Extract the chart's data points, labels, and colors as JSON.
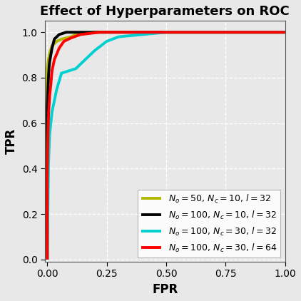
{
  "title": "Effect of Hyperparameters on ROC",
  "xlabel": "FPR",
  "ylabel": "TPR",
  "xlim": [
    -0.01,
    1.0
  ],
  "ylim": [
    -0.01,
    1.05
  ],
  "background_color": "#e8e8e8",
  "fig_background_color": "#e8e8e8",
  "grid_color": "#ffffff",
  "curves": [
    {
      "label": "$N_o = 50,\\, N_c = 10,\\, l = 32$",
      "color": "#b0b800",
      "linewidth": 2.8,
      "fpr": [
        0.0,
        0.0,
        0.0,
        0.005,
        0.01,
        0.02,
        0.04,
        0.06,
        0.08,
        0.1,
        0.12,
        0.15,
        0.18,
        0.2,
        1.0
      ],
      "tpr": [
        0.0,
        0.0,
        0.84,
        0.88,
        0.91,
        0.94,
        0.96,
        0.97,
        0.975,
        0.98,
        0.99,
        0.995,
        0.998,
        1.0,
        1.0
      ]
    },
    {
      "label": "$N_o = 100,\\, N_c = 10,\\, l = 32$",
      "color": "#000000",
      "linewidth": 2.8,
      "fpr": [
        0.0,
        0.0,
        0.0,
        0.003,
        0.005,
        0.008,
        0.01,
        0.015,
        0.02,
        0.03,
        0.05,
        0.08,
        1.0
      ],
      "tpr": [
        0.0,
        0.0,
        0.67,
        0.75,
        0.8,
        0.85,
        0.87,
        0.9,
        0.93,
        0.97,
        0.99,
        1.0,
        1.0
      ]
    },
    {
      "label": "$N_o = 100,\\, N_c = 30,\\, l = 32$",
      "color": "#00d0d0",
      "linewidth": 2.8,
      "fpr": [
        0.0,
        0.0,
        0.005,
        0.01,
        0.02,
        0.04,
        0.06,
        0.09,
        0.12,
        0.15,
        0.2,
        0.25,
        0.3,
        0.4,
        0.5,
        1.0
      ],
      "tpr": [
        0.0,
        0.0,
        0.42,
        0.55,
        0.65,
        0.75,
        0.82,
        0.83,
        0.84,
        0.87,
        0.92,
        0.96,
        0.98,
        0.99,
        1.0,
        1.0
      ]
    },
    {
      "label": "$N_o = 100,\\, N_c = 30,\\, l = 64$",
      "color": "#ff0000",
      "linewidth": 2.8,
      "fpr": [
        0.0,
        0.0,
        0.003,
        0.006,
        0.01,
        0.015,
        0.02,
        0.03,
        0.05,
        0.07,
        0.1,
        0.14,
        0.18,
        0.22,
        1.0
      ],
      "tpr": [
        0.0,
        0.37,
        0.55,
        0.65,
        0.72,
        0.77,
        0.83,
        0.88,
        0.93,
        0.96,
        0.975,
        0.99,
        0.995,
        1.0,
        1.0
      ]
    }
  ],
  "legend": {
    "loc": "lower right",
    "fontsize": 9.0,
    "framealpha": 0.85,
    "handlelength": 2.2,
    "labelspacing": 0.55
  },
  "title_fontsize": 13,
  "axis_label_fontsize": 12,
  "tick_fontsize": 10,
  "xticks": [
    0.0,
    0.25,
    0.5,
    0.75,
    1.0
  ],
  "yticks": [
    0.0,
    0.2,
    0.4,
    0.6,
    0.8,
    1.0
  ]
}
